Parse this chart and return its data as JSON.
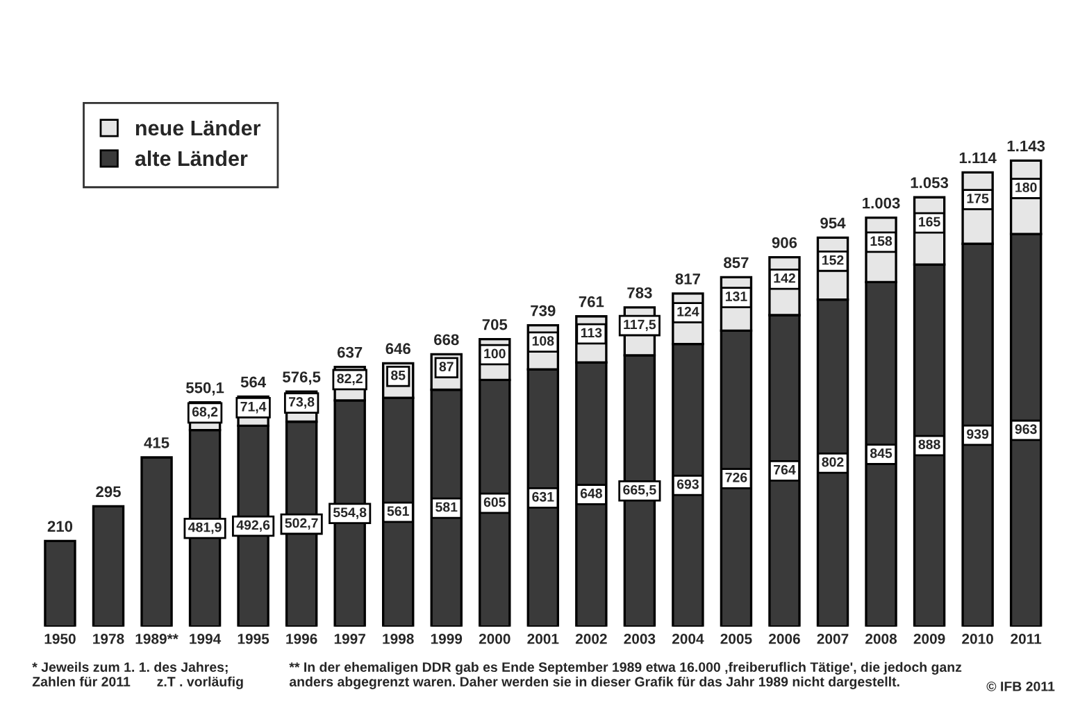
{
  "chart_data": {
    "type": "bar",
    "stacked": true,
    "legend": "top left",
    "grid": false,
    "tick_labels": "x",
    "categories": [
      "1950",
      "1978",
      "1989**",
      "1994",
      "1995",
      "1996",
      "1997",
      "1998",
      "1999",
      "2000",
      "2001",
      "2002",
      "2003",
      "2004",
      "2005",
      "2006",
      "2007",
      "2008",
      "2009",
      "2010",
      "2011"
    ],
    "series": [
      {
        "name": "alte Länder",
        "color": "#3a3a3a",
        "values": [
          210,
          295,
          415,
          481.9,
          492.6,
          502.7,
          554.8,
          561,
          581,
          605,
          631,
          648,
          665.5,
          693,
          726,
          764,
          802,
          845,
          888,
          939,
          963
        ],
        "value_labels": [
          null,
          null,
          null,
          "481,9",
          "492,6",
          "502,7",
          "554,8",
          "561",
          "581",
          "605",
          "631",
          "648",
          "665,5",
          "693",
          "726",
          "764",
          "802",
          "845",
          "888",
          "939",
          "963"
        ]
      },
      {
        "name": "neue Länder",
        "color": "#e6e6e6",
        "values": [
          null,
          null,
          null,
          68.2,
          71.4,
          73.8,
          82.2,
          85,
          87,
          100,
          108,
          113,
          117.5,
          124,
          131,
          142,
          152,
          158,
          165,
          175,
          180
        ],
        "value_labels": [
          null,
          null,
          null,
          "68,2",
          "71,4",
          "73,8",
          "82,2",
          "85",
          "87",
          "100",
          "108",
          "113",
          "117,5",
          "124",
          "131",
          "142",
          "152",
          "158",
          "165",
          "175",
          "180"
        ]
      }
    ],
    "totals": [
      "210",
      "295",
      "415",
      "550,1",
      "564",
      "576,5",
      "637",
      "646",
      "668",
      "705",
      "739",
      "761",
      "783",
      "817",
      "857",
      "906",
      "954",
      "1.003",
      "1.053",
      "1.114",
      "1.143"
    ],
    "annotations": [
      "* Jeweils zum 1. 1. des Jahres;\nZahlen für 2011       z.T . vorläufig",
      "** In der ehemaligen DDR gab es Ende September 1989 etwa 16.000 ‚freiberuflich Tätige', die jedoch ganz\nanders abgegrenzt waren. Daher werden sie in dieser Grafik für das Jahr 1989 nicht dargestellt.",
      "© IFB 2011"
    ]
  }
}
